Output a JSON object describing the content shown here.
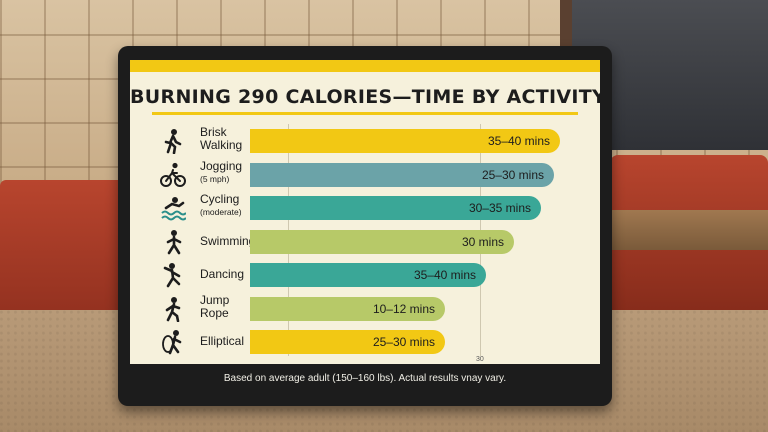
{
  "sign": {
    "title": "BURNING 290 CALORIES—TIME BY ACTIVITY",
    "footnote": "Based on average adult (150–160 lbs). Actual results vnay vary.",
    "tick_label": "30",
    "colors": {
      "yellow": "#f2c814",
      "slate": "#6ba3a8",
      "teal": "#3aa797",
      "lime": "#b7c968",
      "panel": "#f6f1dc",
      "frame": "#1c1c1c"
    }
  },
  "activities": [
    {
      "name": "Brisk",
      "name2": "Walking",
      "sub": "",
      "value_label": "35–40 mins",
      "icon": "walking-icon",
      "color": "yellow",
      "fill": 1.0
    },
    {
      "name": "Jogging",
      "name2": "",
      "sub": "(5 mph)",
      "value_label": "25–30 mins",
      "icon": "cycling-icon",
      "color": "slate",
      "fill": 0.98
    },
    {
      "name": "Cycling",
      "name2": "",
      "sub": "(moderate)",
      "value_label": "30–35 mins",
      "icon": "swimmer-icon",
      "color": "teal",
      "fill": 0.94
    },
    {
      "name": "Swimming",
      "name2": "",
      "sub": "",
      "value_label": "30 mins",
      "icon": "swimming-figure-icon",
      "color": "lime",
      "fill": 0.85
    },
    {
      "name": "Dancing",
      "name2": "",
      "sub": "",
      "value_label": "35–40 mins",
      "icon": "dancing-icon",
      "color": "teal",
      "fill": 0.76
    },
    {
      "name": "Jump",
      "name2": "Rope",
      "sub": "",
      "value_label": "10–12 mins",
      "icon": "jump-rope-icon",
      "color": "lime",
      "fill": 0.63
    },
    {
      "name": "Elliptical",
      "name2": "",
      "sub": "",
      "value_label": "25–30 mins",
      "icon": "elliptical-icon",
      "color": "yellow",
      "fill": 0.63
    }
  ]
}
